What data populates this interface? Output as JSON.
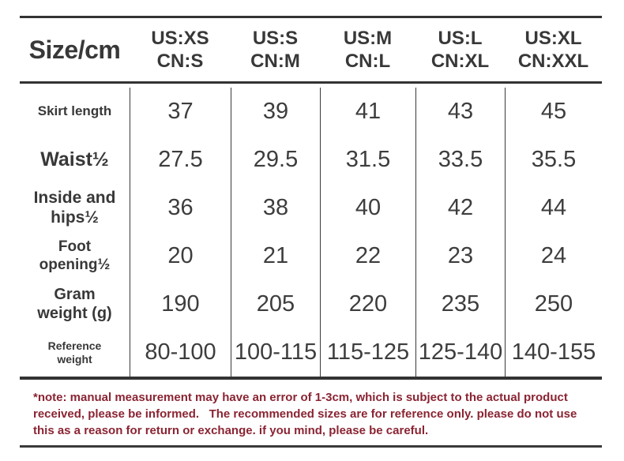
{
  "header": {
    "corner": "Size/cm",
    "cells": [
      {
        "line1": "US:XS",
        "line2": "CN:S"
      },
      {
        "line1": "US:S",
        "line2": "CN:M"
      },
      {
        "line1": "US:M",
        "line2": "CN:L"
      },
      {
        "line1": "US:L",
        "line2": "CN:XL"
      },
      {
        "line1": "US:XL",
        "line2": "CN:XXL"
      }
    ]
  },
  "chart_data": {
    "type": "table",
    "title": "Size/cm",
    "columns": [
      "US:XS CN:S",
      "US:S CN:M",
      "US:M CN:L",
      "US:L CN:XL",
      "US:XL CN:XXL"
    ],
    "rows": [
      {
        "label": "Skirt length",
        "values": [
          "37",
          "39",
          "41",
          "43",
          "45"
        ]
      },
      {
        "label": "Waist½",
        "values": [
          "27.5",
          "29.5",
          "31.5",
          "33.5",
          "35.5"
        ]
      },
      {
        "label": "Inside and hips½",
        "values": [
          "36",
          "38",
          "40",
          "42",
          "44"
        ]
      },
      {
        "label": "Foot opening½",
        "values": [
          "20",
          "21",
          "22",
          "23",
          "24"
        ]
      },
      {
        "label": "Gram weight (g)",
        "values": [
          "190",
          "205",
          "220",
          "235",
          "250"
        ]
      },
      {
        "label": "Reference weight",
        "values": [
          "80-100",
          "100-115",
          "115-125",
          "125-140",
          "140-155"
        ]
      }
    ]
  },
  "note": {
    "text": "*note: manual measurement may have an error of 1-3cm, which is subject to the actual product received, please be informed.   The recommended sizes are for reference only. please do not use this as a reason for return or exchange. if you mind, please be careful."
  },
  "colors": {
    "text": "#3a3a3a",
    "note": "#8a2433",
    "line": "#333333"
  }
}
